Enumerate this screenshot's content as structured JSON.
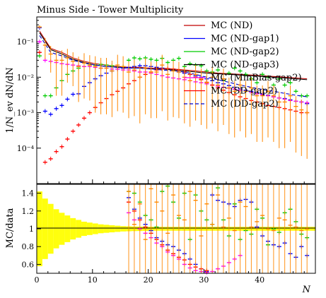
{
  "chart_data": {
    "type": "scatter",
    "title": "Minus Side - Tower Multiplicity",
    "xlabel": "N",
    "ylabel_main": "1/N_ev dN/dN",
    "ylabel_ratio": "MC/data",
    "xlim": [
      0,
      50
    ],
    "main_ylim": [
      1e-05,
      0.5
    ],
    "main_yscale": "log",
    "main_yticks": [
      {
        "value": 0.1,
        "label": "10⁻¹"
      },
      {
        "value": 0.01,
        "label": "10⁻²"
      },
      {
        "value": 0.001,
        "label": "10⁻³"
      },
      {
        "value": 0.0001,
        "label": "10⁻⁴"
      }
    ],
    "ratio_ylim": [
      0.5,
      1.5
    ],
    "ratio_yticks": [
      0.6,
      0.8,
      1,
      1.2,
      1.4
    ],
    "xticks": [
      0,
      10,
      20,
      30,
      40
    ],
    "legend_position": "top-right",
    "series": [
      {
        "name": "MC (ND)",
        "color": "#c00000",
        "style": "solid",
        "x": [
          0,
          2,
          4,
          6,
          8,
          10,
          12,
          14,
          16,
          18,
          20,
          22,
          24,
          26,
          28,
          30,
          32,
          34,
          36,
          38,
          40,
          42,
          44,
          46,
          48
        ],
        "y": [
          0.2,
          0.065,
          0.05,
          0.035,
          0.028,
          0.024,
          0.022,
          0.02,
          0.019,
          0.019,
          0.018,
          0.018,
          0.017,
          0.016,
          0.015,
          0.014,
          0.013,
          0.0125,
          0.012,
          0.0115,
          0.011,
          0.0105,
          0.01,
          0.0095,
          0.009
        ]
      },
      {
        "name": "MC (ND-gap1)",
        "color": "#0000ff",
        "style": "points",
        "x": [
          0,
          1,
          2,
          3,
          4,
          5,
          6,
          7,
          8,
          9,
          10,
          11,
          12,
          13,
          14,
          15,
          16,
          17,
          18,
          19,
          20,
          21,
          22,
          23,
          24,
          25,
          26,
          27,
          28,
          29,
          30,
          31,
          32,
          33,
          34,
          35,
          36,
          37,
          38,
          39,
          40,
          41,
          42,
          43,
          44,
          45,
          46,
          47,
          48
        ],
        "y": [
          0.25,
          0.0011,
          0.0009,
          0.0013,
          0.0016,
          0.0024,
          0.0033,
          0.0034,
          0.0055,
          0.007,
          0.009,
          0.011,
          0.013,
          0.015,
          0.017,
          0.018,
          0.019,
          0.02,
          0.021,
          0.021,
          0.02,
          0.019,
          0.018,
          0.017,
          0.016,
          0.014,
          0.013,
          0.012,
          0.011,
          0.01,
          0.009,
          0.008,
          0.007,
          0.0065,
          0.0058,
          0.0052,
          0.0047,
          0.0043,
          0.004,
          0.0037,
          0.0034,
          0.0031,
          0.0028,
          0.0026,
          0.0025,
          0.0023,
          0.0021,
          0.002,
          0.0018
        ]
      },
      {
        "name": "MC (ND-gap2)",
        "color": "#00cc00",
        "style": "points",
        "x": [
          0,
          1,
          2,
          3,
          4,
          5,
          6,
          7,
          8,
          9,
          10,
          11,
          12,
          13,
          14,
          15,
          16,
          17,
          18,
          19,
          20,
          21,
          22,
          23,
          24,
          25,
          26,
          27,
          28,
          29,
          30,
          31,
          32,
          33,
          34,
          35,
          36,
          37,
          38,
          39,
          40,
          41,
          42,
          43,
          44,
          45,
          46,
          47,
          48
        ],
        "y": [
          0.04,
          0.003,
          0.003,
          0.005,
          0.008,
          0.012,
          0.015,
          0.018,
          0.02,
          0.022,
          0.022,
          0.023,
          0.022,
          0.021,
          0.019,
          0.02,
          0.03,
          0.035,
          0.033,
          0.035,
          0.032,
          0.03,
          0.034,
          0.026,
          0.03,
          0.034,
          0.02,
          0.024,
          0.022,
          0.021,
          0.015,
          0.014,
          0.016,
          0.008,
          0.013,
          0.018,
          0.015,
          0.012,
          0.009,
          0.007,
          0.012,
          0.01,
          0.006,
          0.009,
          0.006,
          0.007,
          0.004,
          0.003,
          0.003
        ]
      },
      {
        "name": "MC (ND-gap3)",
        "color": "#000000",
        "style": "solid",
        "x": [
          0,
          2,
          4,
          6,
          8,
          10,
          12,
          14,
          16,
          18,
          20,
          22,
          24,
          26,
          28,
          30,
          32,
          34,
          36,
          38,
          40,
          42,
          44,
          46,
          48
        ],
        "y": [
          0.18,
          0.06,
          0.045,
          0.032,
          0.026,
          0.022,
          0.02,
          0.019,
          0.018,
          0.018,
          0.017,
          0.017,
          0.016,
          0.015,
          0.014,
          0.013,
          0.0125,
          0.012,
          0.0115,
          0.011,
          0.0105,
          0.01,
          0.0095,
          0.009,
          0.0085
        ]
      },
      {
        "name": "MC (MinBias-gap2)",
        "color": "#ff00ff",
        "style": "points",
        "x": [
          0,
          1,
          2,
          3,
          4,
          5,
          6,
          7,
          8,
          9,
          10,
          11,
          12,
          13,
          14,
          15,
          16,
          17,
          18,
          19,
          20,
          21,
          22,
          23,
          24,
          25,
          26,
          27,
          28,
          29,
          30,
          31,
          32,
          33,
          34,
          35,
          36,
          37,
          38,
          39,
          40,
          41,
          42,
          43,
          44,
          45,
          46,
          47,
          48
        ],
        "y": [
          0.1,
          0.03,
          0.028,
          0.026,
          0.024,
          0.023,
          0.022,
          0.021,
          0.02,
          0.02,
          0.019,
          0.018,
          0.018,
          0.017,
          0.017,
          0.016,
          0.016,
          0.015,
          0.014,
          0.014,
          0.013,
          0.012,
          0.011,
          0.01,
          0.0095,
          0.009,
          0.0085,
          0.008,
          0.0074,
          0.007,
          0.0065,
          0.006,
          0.0056,
          0.0052,
          0.0049,
          0.0046,
          0.0043,
          0.004,
          0.0037,
          0.0034,
          0.0032,
          0.003,
          0.0028,
          0.0026,
          0.0024,
          0.0022,
          0.0021,
          0.002,
          0.0019
        ]
      },
      {
        "name": "MC (SD-gap2)",
        "color": "#ff0000",
        "style": "points",
        "x": [
          0,
          1,
          2,
          3,
          4,
          5,
          6,
          7,
          8,
          9,
          10,
          11,
          12,
          13,
          14,
          15,
          16,
          17,
          18,
          19,
          20,
          21,
          22,
          23,
          24,
          25,
          26,
          27,
          28,
          29,
          30,
          31,
          32,
          33,
          34,
          35,
          36,
          37,
          38,
          39,
          40,
          41,
          42,
          43,
          44,
          45,
          46,
          47,
          48
        ],
        "y": [
          0.05,
          4e-05,
          5e-05,
          8e-05,
          0.00011,
          0.00018,
          0.0003,
          0.00045,
          0.0007,
          0.001,
          0.0014,
          0.0019,
          0.0025,
          0.0032,
          0.004,
          0.005,
          0.0065,
          0.008,
          0.01,
          0.012,
          0.014,
          0.016,
          0.017,
          0.0175,
          0.017,
          0.016,
          0.014,
          0.012,
          0.01,
          0.0085,
          0.0072,
          0.006,
          0.005,
          0.0043,
          0.0037,
          0.0032,
          0.0028,
          0.0025,
          0.0022,
          0.002,
          0.0018,
          0.0016,
          0.0015,
          0.0014,
          0.0013,
          0.0012,
          0.0011,
          0.001,
          0.001
        ]
      },
      {
        "name": "MC (DD-gap2)",
        "color": "#0000cc",
        "style": "dashed",
        "x": [
          0,
          2,
          4,
          6,
          8,
          10,
          12,
          14,
          16,
          18,
          20,
          22,
          24,
          26,
          28,
          30,
          32,
          34,
          36,
          38,
          40,
          42,
          44,
          46,
          48
        ],
        "y": [
          0.15,
          0.05,
          0.04,
          0.03,
          0.025,
          0.022,
          0.02,
          0.019,
          0.018,
          0.018,
          0.017,
          0.016,
          0.015,
          0.014,
          0.012,
          0.01,
          0.0085,
          0.0072,
          0.006,
          0.0052,
          0.0045,
          0.004,
          0.0035,
          0.0031,
          0.0028
        ]
      }
    ],
    "data": {
      "color": "#ff8800",
      "x": [
        0,
        1,
        2,
        3,
        4,
        5,
        6,
        7,
        8,
        9,
        10,
        11,
        12,
        13,
        14,
        15,
        16,
        17,
        18,
        19,
        20,
        21,
        22,
        23,
        24,
        25,
        26,
        27,
        28,
        29,
        30,
        31,
        32,
        33,
        34,
        35,
        36,
        37,
        38,
        39,
        40,
        41,
        42,
        43,
        44,
        45,
        46,
        47,
        48
      ],
      "y": [
        0.26,
        0.08,
        0.045,
        0.03,
        0.03,
        0.035,
        0.028,
        0.02,
        0.025,
        0.022,
        0.02,
        0.018,
        0.018,
        0.015,
        0.022,
        0.02,
        0.014,
        0.016,
        0.01,
        0.018,
        0.014,
        0.014,
        0.022,
        0.012,
        0.015,
        0.014,
        0.01,
        0.008,
        0.012,
        0.009,
        0.007,
        0.01,
        0.006,
        0.009,
        0.005,
        0.004,
        0.006,
        0.004,
        0.005,
        0.003,
        0.003,
        0.004,
        0.003,
        0.002,
        0.002,
        0.003,
        0.0015,
        0.0012,
        0.001
      ],
      "err_rel": [
        0.1,
        0.6,
        0.7,
        0.9,
        0.9,
        0.8,
        0.8,
        0.9,
        0.9,
        0.9,
        0.95,
        0.95,
        0.95,
        0.95,
        0.95,
        0.95,
        0.95,
        0.95,
        0.95,
        0.95,
        0.95,
        0.95,
        0.95,
        0.95,
        0.95,
        0.95,
        0.95,
        0.95,
        0.95,
        0.95,
        0.95,
        0.95,
        0.95,
        0.95,
        0.95,
        0.95,
        0.95,
        0.95,
        0.95,
        0.95,
        0.95,
        0.95,
        0.95,
        0.95,
        0.95,
        0.95,
        0.95,
        0.95,
        0.95
      ]
    },
    "ratio_band": {
      "color": "#ffff00",
      "x": [
        0,
        1,
        2,
        3,
        4,
        5,
        6,
        7,
        8,
        9,
        10,
        11,
        12,
        13,
        14,
        15,
        16,
        17,
        18,
        19,
        20,
        21,
        22,
        23,
        24,
        25,
        26,
        27,
        28,
        29,
        30,
        31,
        32,
        33,
        34,
        35,
        36,
        37,
        38,
        39,
        40,
        41,
        42,
        43,
        44,
        45,
        46,
        47,
        48,
        49
      ],
      "half_width": [
        0.42,
        0.34,
        0.28,
        0.22,
        0.18,
        0.15,
        0.12,
        0.1,
        0.08,
        0.07,
        0.06,
        0.05,
        0.045,
        0.04,
        0.035,
        0.03,
        0.028,
        0.026,
        0.025,
        0.024,
        0.023,
        0.022,
        0.022,
        0.022,
        0.022,
        0.022,
        0.022,
        0.022,
        0.022,
        0.022,
        0.022,
        0.022,
        0.022,
        0.022,
        0.022,
        0.022,
        0.022,
        0.022,
        0.022,
        0.022,
        0.022,
        0.022,
        0.022,
        0.022,
        0.022,
        0.022,
        0.022,
        0.022,
        0.022,
        0.022
      ]
    },
    "ratio_points": [
      {
        "name": "MC (ND-gap1)",
        "color": "#0000ff",
        "x": [
          16,
          17,
          18,
          19,
          20,
          21,
          22,
          23,
          24,
          25,
          26,
          27,
          28,
          29,
          30,
          31,
          32,
          33,
          34,
          35,
          36,
          37,
          38,
          39,
          40,
          41,
          42,
          43,
          44,
          45,
          46,
          47,
          48
        ],
        "y": [
          1.35,
          1.22,
          1.12,
          1.05,
          0.98,
          0.9,
          0.86,
          0.82,
          0.8,
          0.76,
          0.72,
          0.66,
          0.6,
          0.55,
          0.52,
          1.38,
          1.32,
          1.3,
          1.28,
          1.25,
          1.32,
          1.33,
          1.3,
          1.02,
          0.92,
          0.86,
          0.82,
          0.8,
          0.84,
          0.72,
          0.68,
          0.8,
          0.7
        ]
      },
      {
        "name": "MC (ND-gap2)",
        "color": "#00cc00",
        "x": [
          16,
          17,
          18,
          19,
          20,
          21,
          22,
          23,
          24,
          25,
          26,
          27,
          28,
          29,
          30,
          31,
          32,
          33,
          34,
          35,
          36,
          37,
          38,
          39,
          40,
          41,
          42,
          43,
          44,
          45,
          46,
          47,
          48
        ],
        "y": [
          1.42,
          1.4,
          1.3,
          1.15,
          1.1,
          1.02,
          1.42,
          1.48,
          1.3,
          1.12,
          1.4,
          0.88,
          1.38,
          1.2,
          1.1,
          1.05,
          1.46,
          1.1,
          0.92,
          1.28,
          0.88,
          0.98,
          0.94,
          1.22,
          1.12,
          0.82,
          1.0,
          0.96,
          1.18,
          1.22,
          1.08,
          0.94,
          0.9
        ]
      },
      {
        "name": "MC (MinBias-gap2)",
        "color": "#ff00ff",
        "x": [
          16,
          17,
          18,
          19,
          20,
          21,
          22,
          23,
          24,
          25,
          26,
          27,
          28,
          29,
          30,
          31,
          32,
          33,
          34,
          35,
          36
        ],
        "y": [
          1.18,
          1.1,
          1.0,
          0.95,
          0.9,
          0.84,
          0.8,
          0.74,
          0.7,
          0.66,
          0.6,
          0.56,
          0.53,
          0.52,
          0.51,
          0.52,
          0.55,
          0.58,
          0.62,
          0.66,
          0.7
        ]
      },
      {
        "name": "MC (SD-gap2)",
        "color": "#ff0000",
        "x": [
          16,
          17,
          18,
          19,
          20,
          21,
          22,
          23,
          24,
          25,
          26,
          27,
          28,
          29,
          30
        ],
        "y": [
          1.3,
          1.2,
          1.1,
          1.02,
          0.95,
          0.88,
          0.82,
          0.76,
          0.72,
          0.68,
          0.65,
          0.6,
          0.57,
          0.55,
          0.53
        ]
      },
      {
        "name": "data",
        "color": "#ff8800",
        "x": [
          16,
          17,
          18,
          19,
          20,
          21,
          22,
          23,
          24,
          25,
          26,
          27,
          28,
          29,
          30,
          31,
          32,
          33,
          34,
          35,
          36,
          37,
          38,
          39,
          40,
          41,
          42,
          43,
          44,
          45,
          46,
          47,
          48
        ],
        "y": [
          1.42,
          1.05,
          1.28,
          0.88,
          1.45,
          1.3,
          1.2,
          0.95,
          1.38,
          1.15,
          1.1,
          1.42,
          1.32,
          0.92,
          1.28,
          1.05,
          1.38,
          1.02,
          1.12,
          0.98,
          1.3,
          1.25,
          1.02,
          1.08,
          1.15,
          1.0,
          0.98,
          1.12,
          1.1,
          1.04,
          1.02,
          0.98,
          1.0
        ],
        "err": 0.95
      }
    ]
  }
}
